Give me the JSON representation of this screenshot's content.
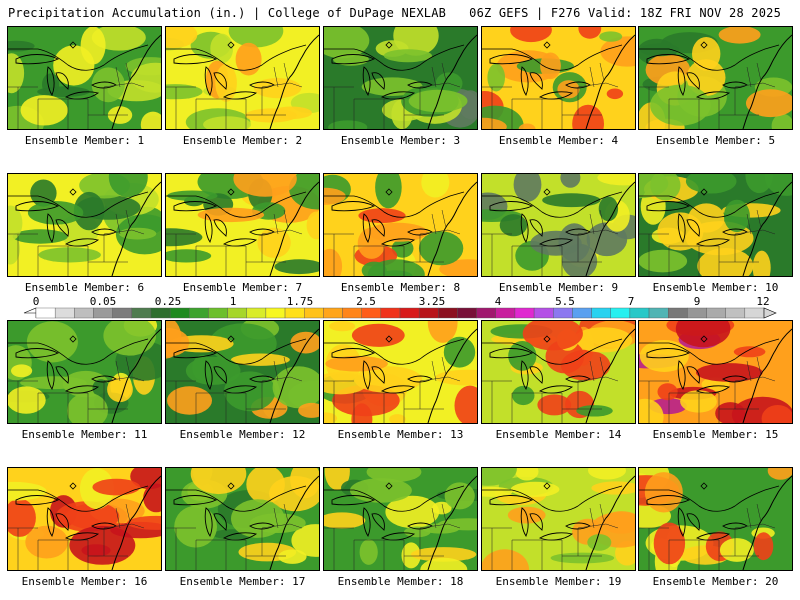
{
  "header": {
    "left_title": "Precipitation Accumulation (in.) | College of DuPage NEXLAB",
    "right_title": "06Z GEFS | F276 Valid: 18Z FRI NOV 28 2025"
  },
  "legend": {
    "tick_labels": [
      "0",
      "0.05",
      "0.25",
      "1",
      "1.75",
      "2.5",
      "3.25",
      "4",
      "5.5",
      "7",
      "9",
      "12"
    ],
    "bins": [
      {
        "color": "#ffffff"
      },
      {
        "color": "#dcdcdc"
      },
      {
        "color": "#bebebe"
      },
      {
        "color": "#9a9a9a"
      },
      {
        "color": "#7c7c7c"
      },
      {
        "color": "#4f7c4f"
      },
      {
        "color": "#2f6e2f"
      },
      {
        "color": "#1f8a1f"
      },
      {
        "color": "#3ea32e"
      },
      {
        "color": "#6cbf2c"
      },
      {
        "color": "#a6d62a"
      },
      {
        "color": "#d9ec2a"
      },
      {
        "color": "#f7f722"
      },
      {
        "color": "#ffe01a"
      },
      {
        "color": "#ffc21a"
      },
      {
        "color": "#ffa51a"
      },
      {
        "color": "#ff851a"
      },
      {
        "color": "#ff5d1a"
      },
      {
        "color": "#f0321a"
      },
      {
        "color": "#d81a1a"
      },
      {
        "color": "#b8141a"
      },
      {
        "color": "#8c1020"
      },
      {
        "color": "#781038"
      },
      {
        "color": "#a0186e"
      },
      {
        "color": "#c81e9e"
      },
      {
        "color": "#e028d0"
      },
      {
        "color": "#b450e6"
      },
      {
        "color": "#8c78f0"
      },
      {
        "color": "#5aa0f0"
      },
      {
        "color": "#28d2f0"
      },
      {
        "color": "#28f0f0"
      },
      {
        "color": "#28c8c8"
      },
      {
        "color": "#50b4b4"
      },
      {
        "color": "#787878"
      },
      {
        "color": "#969696"
      },
      {
        "color": "#aaaaaa"
      },
      {
        "color": "#c0c0c0"
      },
      {
        "color": "#d6d6d6"
      }
    ]
  },
  "palette": {
    "dark_green": "#2a7a2a",
    "green": "#3c9a2c",
    "light_green": "#7cc22c",
    "yellow_green": "#c2e02a",
    "yellow": "#f2f024",
    "gold": "#ffd21c",
    "orange": "#ffa01c",
    "red": "#f04018",
    "dark_red": "#c8141c",
    "magenta": "#b8208c",
    "gray_green": "#5f7a5f"
  },
  "members": [
    {
      "label": "Ensemble Member: 1",
      "scheme": [
        "#3c9a2c",
        "#7cc22c",
        "#c2e02a",
        "#2a7a2a",
        "#f2f024"
      ]
    },
    {
      "label": "Ensemble Member: 2",
      "scheme": [
        "#f2f024",
        "#ffd21c",
        "#7cc22c",
        "#c2e02a",
        "#ffa01c"
      ]
    },
    {
      "label": "Ensemble Member: 3",
      "scheme": [
        "#2a7a2a",
        "#3c9a2c",
        "#7cc22c",
        "#5f7a5f",
        "#c2e02a"
      ]
    },
    {
      "label": "Ensemble Member: 4",
      "scheme": [
        "#ffd21c",
        "#ffa01c",
        "#7cc22c",
        "#f04018",
        "#3c9a2c"
      ]
    },
    {
      "label": "Ensemble Member: 5",
      "scheme": [
        "#3c9a2c",
        "#7cc22c",
        "#ffd21c",
        "#2a7a2a",
        "#ffa01c"
      ]
    },
    {
      "label": "Ensemble Member: 6",
      "scheme": [
        "#f2f024",
        "#c2e02a",
        "#3c9a2c",
        "#7cc22c",
        "#2a7a2a"
      ]
    },
    {
      "label": "Ensemble Member: 7",
      "scheme": [
        "#f2f024",
        "#ffd21c",
        "#3c9a2c",
        "#2a7a2a",
        "#ffa01c"
      ]
    },
    {
      "label": "Ensemble Member: 8",
      "scheme": [
        "#ffd21c",
        "#f2f024",
        "#ffa01c",
        "#3c9a2c",
        "#f04018"
      ]
    },
    {
      "label": "Ensemble Member: 9",
      "scheme": [
        "#c2e02a",
        "#3c9a2c",
        "#2a7a2a",
        "#f2f024",
        "#5f7a5f"
      ]
    },
    {
      "label": "Ensemble Member: 10",
      "scheme": [
        "#2a7a2a",
        "#3c9a2c",
        "#7cc22c",
        "#f2f024",
        "#ffd21c"
      ]
    },
    {
      "label": "Ensemble Member: 11",
      "scheme": [
        "#3c9a2c",
        "#f2f024",
        "#7cc22c",
        "#ffd21c",
        "#2a7a2a"
      ]
    },
    {
      "label": "Ensemble Member: 12",
      "scheme": [
        "#2a7a2a",
        "#3c9a2c",
        "#7cc22c",
        "#ffd21c",
        "#ffa01c"
      ]
    },
    {
      "label": "Ensemble Member: 13",
      "scheme": [
        "#f2f024",
        "#ffd21c",
        "#ffa01c",
        "#3c9a2c",
        "#f04018"
      ]
    },
    {
      "label": "Ensemble Member: 14",
      "scheme": [
        "#c2e02a",
        "#ffd21c",
        "#3c9a2c",
        "#ffa01c",
        "#f04018"
      ]
    },
    {
      "label": "Ensemble Member: 15",
      "scheme": [
        "#ffa01c",
        "#f04018",
        "#ffd21c",
        "#c8141c",
        "#b8208c"
      ]
    },
    {
      "label": "Ensemble Member: 16",
      "scheme": [
        "#ffd21c",
        "#ffa01c",
        "#f2f024",
        "#f04018",
        "#c8141c"
      ]
    },
    {
      "label": "Ensemble Member: 17",
      "scheme": [
        "#3c9a2c",
        "#7cc22c",
        "#f2f024",
        "#ffd21c",
        "#2a7a2a"
      ]
    },
    {
      "label": "Ensemble Member: 18",
      "scheme": [
        "#3c9a2c",
        "#2a7a2a",
        "#7cc22c",
        "#f2f024",
        "#ffd21c"
      ]
    },
    {
      "label": "Ensemble Member: 19",
      "scheme": [
        "#c2e02a",
        "#f2f024",
        "#ffd21c",
        "#7cc22c",
        "#ffa01c"
      ]
    },
    {
      "label": "Ensemble Member: 20",
      "scheme": [
        "#3c9a2c",
        "#f2f024",
        "#ffd21c",
        "#ffa01c",
        "#f04018"
      ]
    }
  ]
}
